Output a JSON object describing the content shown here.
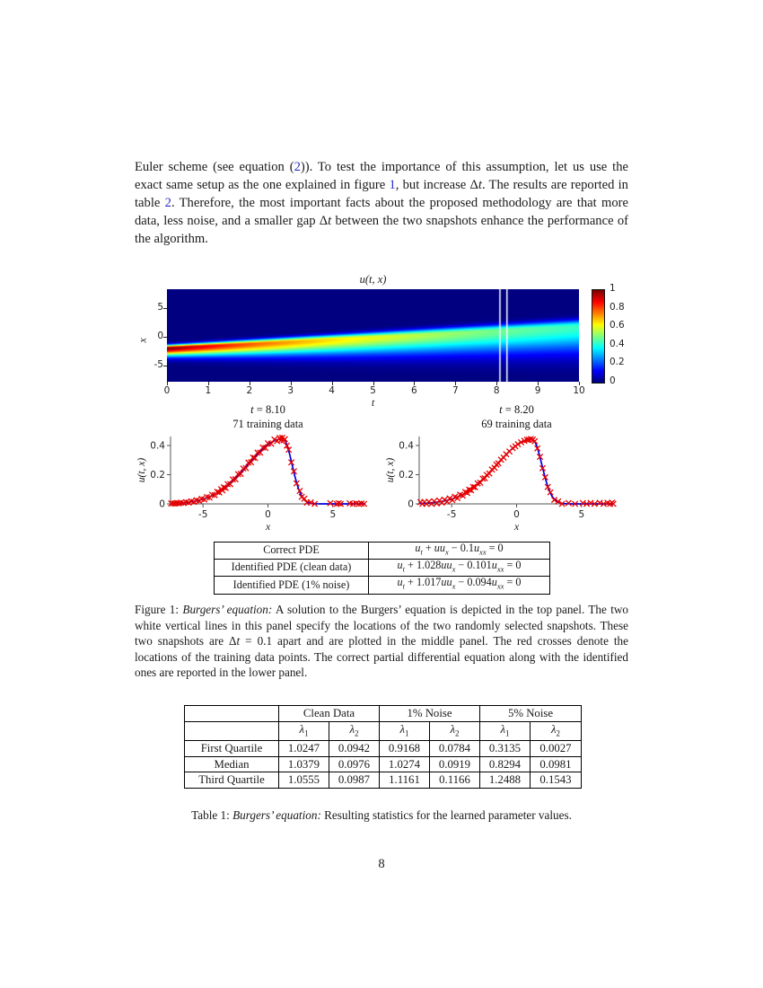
{
  "page": {
    "number": "8"
  },
  "paragraph_html": "Euler scheme (see equation (<span class=\"lnk\">2</span>)). To test the importance of this assumption, let us use the exact same setup as the one explained in figure <span class=\"lnk\">1</span>, but increase Δ<i>t</i>. The results are reported in table <span class=\"lnk\">2</span>. Therefore, the most important facts about the proposed methodology are that more data, less noise, and a smaller gap Δ<i>t</i> between the two snapshots enhance the performance of the algorithm.",
  "figure": {
    "pde_table": {
      "rows": [
        {
          "label": "Correct PDE",
          "equation_html": "<i>u</i><sub><i>t</i></sub> + <i>uu</i><sub><i>x</i></sub> − 0.1<i>u</i><sub><i>xx</i></sub> = 0"
        },
        {
          "label": "Identified PDE (clean data)",
          "equation_html": "<i>u</i><sub><i>t</i></sub> + 1.028<i>uu</i><sub><i>x</i></sub> − 0.101<i>u</i><sub><i>xx</i></sub> = 0"
        },
        {
          "label": "Identified PDE (1% noise)",
          "equation_html": "<i>u</i><sub><i>t</i></sub> + 1.017<i>uu</i><sub><i>x</i></sub> − 0.094<i>u</i><sub><i>xx</i></sub> = 0"
        }
      ]
    },
    "caption": {
      "prefix": "Figure 1:",
      "emph": "Burgers’ equation:",
      "body_html": "A solution to the Burgers’ equation is depicted in the top panel. The two white vertical lines in this panel specify the locations of the two randomly selected snapshots. These two snapshots are Δ<i>t</i> = 0.1 apart and are plotted in the middle panel. The red crosses denote the locations of the training data points. The correct partial differential equation along with the identified ones are reported in the lower panel."
    }
  },
  "table1": {
    "group_headers": [
      "Clean Data",
      "1% Noise",
      "5% Noise"
    ],
    "param_headers_html": [
      "<i>λ</i><sub>1</sub>",
      "<i>λ</i><sub>2</sub>"
    ],
    "rows": [
      {
        "label": "First Quartile",
        "values": [
          "1.0247",
          "0.0942",
          "0.9168",
          "0.0784",
          "0.3135",
          "0.0027"
        ]
      },
      {
        "label": "Median",
        "values": [
          "1.0379",
          "0.0976",
          "1.0274",
          "0.0919",
          "0.8294",
          "0.0981"
        ]
      },
      {
        "label": "Third Quartile",
        "values": [
          "1.0555",
          "0.0987",
          "1.1161",
          "0.1166",
          "1.2488",
          "0.1543"
        ]
      }
    ],
    "caption": {
      "prefix": "Table 1:",
      "emph": "Burgers’ equation:",
      "body": "Resulting statistics for the learned parameter values."
    }
  },
  "chart_data": [
    {
      "type": "heatmap",
      "title": "u(t, x)",
      "xlabel": "t",
      "ylabel": "x",
      "xlim": [
        0,
        10
      ],
      "ylim": [
        -7.8,
        8.3
      ],
      "xticks": [
        0,
        1,
        2,
        3,
        4,
        5,
        6,
        7,
        8,
        9,
        10
      ],
      "yticks": [
        5,
        0,
        -5
      ],
      "colormap": "jet",
      "colorbar_ticks": [
        "1",
        "0.8",
        "0.6",
        "0.4",
        "0.2",
        "0"
      ],
      "colorbar_values": [
        1,
        0.8,
        0.6,
        0.4,
        0.2,
        0
      ],
      "snapshot_lines_t": [
        8.1,
        8.2
      ],
      "profile": {
        "A_den0": 1,
        "A_den_slope": 0.132,
        "c0": -2,
        "c_slope": 0.385,
        "w_up0": 0.55,
        "w_up_slope": 0.055,
        "w_dn0": 1.3,
        "w_dn_slope": 0.31
      },
      "vmin": 0,
      "vmax": 1
    },
    {
      "type": "line+scatter",
      "title_var": "t",
      "title_rest": " = 8.10",
      "subtitle": "71 training data",
      "xlabel": "x",
      "ylabel": "u(t, x)",
      "xlim": [
        -7.5,
        7.5
      ],
      "ylim": [
        0,
        0.462
      ],
      "xticks": [
        -5,
        0,
        5
      ],
      "yticks": [
        0,
        0.2,
        0.4
      ],
      "curve": {
        "A": 0.445,
        "c": 1.15,
        "w_up": 1.0,
        "w_dn": 3.8
      },
      "peak": {
        "x": 1.15,
        "y": 0.445
      },
      "line_color": "#0000dd",
      "marker_color": "#e60000",
      "train_x": [
        -7.45,
        -7.3,
        -7.15,
        -7.0,
        -6.85,
        -6.7,
        -6.5,
        -6.3,
        -6.1,
        -5.9,
        -5.7,
        -5.5,
        -5.3,
        -5.1,
        -4.9,
        -4.7,
        -4.5,
        -4.3,
        -4.1,
        -3.9,
        -3.75,
        -3.6,
        -3.5,
        -3.4,
        -3.25,
        -3.1,
        -2.9,
        -2.7,
        -2.5,
        -2.3,
        -2.1,
        -1.9,
        -1.7,
        -1.5,
        -1.3,
        -1.15,
        -1.0,
        -0.8,
        -0.6,
        -0.4,
        -0.2,
        0.0,
        0.25,
        0.5,
        0.7,
        0.9,
        1.0,
        1.1,
        1.2,
        1.3,
        1.45,
        1.6,
        1.8,
        2.0,
        2.2,
        2.45,
        2.6,
        2.8,
        3.0,
        3.3,
        3.6,
        4.8,
        5.3,
        5.45,
        5.6,
        6.3,
        6.55,
        6.8,
        7.0,
        7.2,
        7.4
      ]
    },
    {
      "type": "line+scatter",
      "title_var": "t",
      "title_rest": " = 8.20",
      "subtitle": "69 training data",
      "xlabel": "x",
      "ylabel": "u(t, x)",
      "xlim": [
        -7.5,
        7.5
      ],
      "ylim": [
        0,
        0.462
      ],
      "xticks": [
        -5,
        0,
        5
      ],
      "yticks": [
        0,
        0.2,
        0.4
      ],
      "curve": {
        "A": 0.443,
        "c": 1.2,
        "w_up": 1.05,
        "w_dn": 3.85
      },
      "peak": {
        "x": 1.2,
        "y": 0.443
      },
      "line_color": "#0000dd",
      "marker_color": "#e60000",
      "train_x": [
        -7.4,
        -7.25,
        -7.1,
        -6.95,
        -6.75,
        -6.55,
        -6.35,
        -6.15,
        -5.95,
        -5.75,
        -5.55,
        -5.35,
        -5.15,
        -4.95,
        -4.75,
        -4.55,
        -4.35,
        -4.15,
        -3.95,
        -3.8,
        -3.65,
        -3.5,
        -3.35,
        -3.2,
        -3.0,
        -2.8,
        -2.6,
        -2.45,
        -2.3,
        -2.1,
        -1.9,
        -1.7,
        -1.55,
        -1.4,
        -1.2,
        -1.0,
        -0.8,
        -0.55,
        -0.3,
        -0.1,
        0.1,
        0.35,
        0.6,
        0.8,
        0.95,
        1.1,
        1.25,
        1.4,
        1.6,
        1.8,
        2.0,
        2.2,
        2.4,
        2.6,
        2.9,
        3.2,
        3.5,
        4.0,
        4.5,
        5.1,
        5.4,
        5.7,
        6.0,
        6.4,
        6.7,
        7.0,
        7.2,
        7.35,
        7.45
      ]
    }
  ]
}
